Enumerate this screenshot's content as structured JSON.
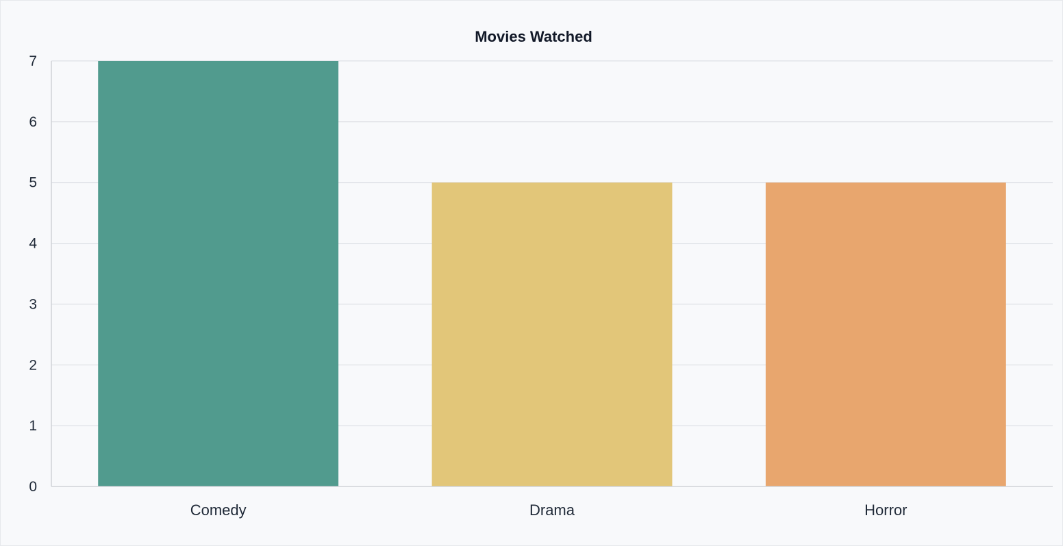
{
  "chart_data": {
    "type": "bar",
    "title": "Movies Watched",
    "xlabel": "",
    "ylabel": "",
    "categories": [
      "Comedy",
      "Drama",
      "Horror"
    ],
    "values": [
      7,
      5,
      5
    ],
    "colors": [
      "#519b8e",
      "#e2c679",
      "#e8a66e"
    ],
    "ylim": [
      0,
      7
    ],
    "yticks": [
      0,
      1,
      2,
      3,
      4,
      5,
      6,
      7
    ],
    "grid": true,
    "legend": "none"
  }
}
